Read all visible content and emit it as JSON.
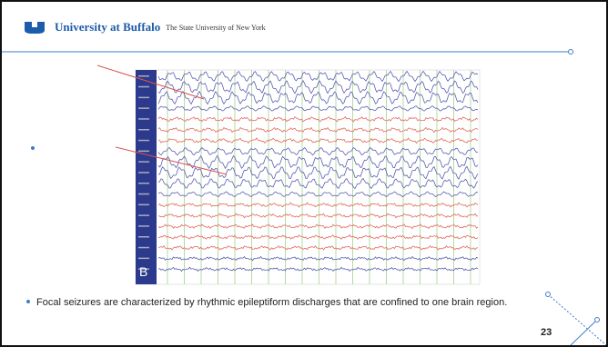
{
  "header": {
    "logo_text": "University at Buffalo",
    "subtitle": "The State University of New York"
  },
  "figure": {
    "label": "B"
  },
  "bullets": [
    "Focal seizures are characterized by rhythmic epileptiform discharges that are confined to one brain region."
  ],
  "page_number": "23"
}
